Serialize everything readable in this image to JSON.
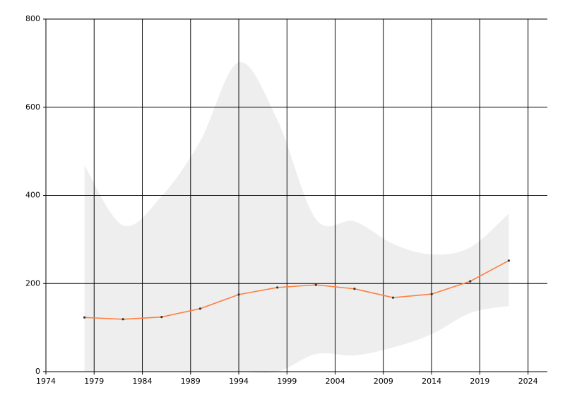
{
  "chart_data": {
    "type": "line",
    "x": [
      1978,
      1982,
      1986,
      1990,
      1994,
      1998,
      2002,
      2006,
      2010,
      2014,
      2018,
      2022
    ],
    "series": [
      {
        "values": [
          123,
          119,
          124,
          143,
          175,
          191,
          197,
          188,
          168,
          176,
          205,
          252
        ],
        "color": "#ff7f3f",
        "marker_color": "#333333"
      }
    ],
    "band": {
      "upper": [
        468,
        332,
        398,
        523,
        702,
        571,
        346,
        341,
        290,
        266,
        282,
        359
      ],
      "lower": [
        0,
        0,
        0,
        0,
        0,
        0,
        40,
        37,
        55,
        85,
        133,
        149
      ],
      "color": "#eeeeee"
    },
    "xlim": [
      1974,
      2026
    ],
    "xticks": [
      1974,
      1979,
      1984,
      1989,
      1994,
      1999,
      2004,
      2009,
      2014,
      2019,
      2024
    ],
    "ylim": [
      0,
      800
    ],
    "yticks": [
      0,
      200,
      400,
      600,
      800
    ],
    "grid": true
  }
}
